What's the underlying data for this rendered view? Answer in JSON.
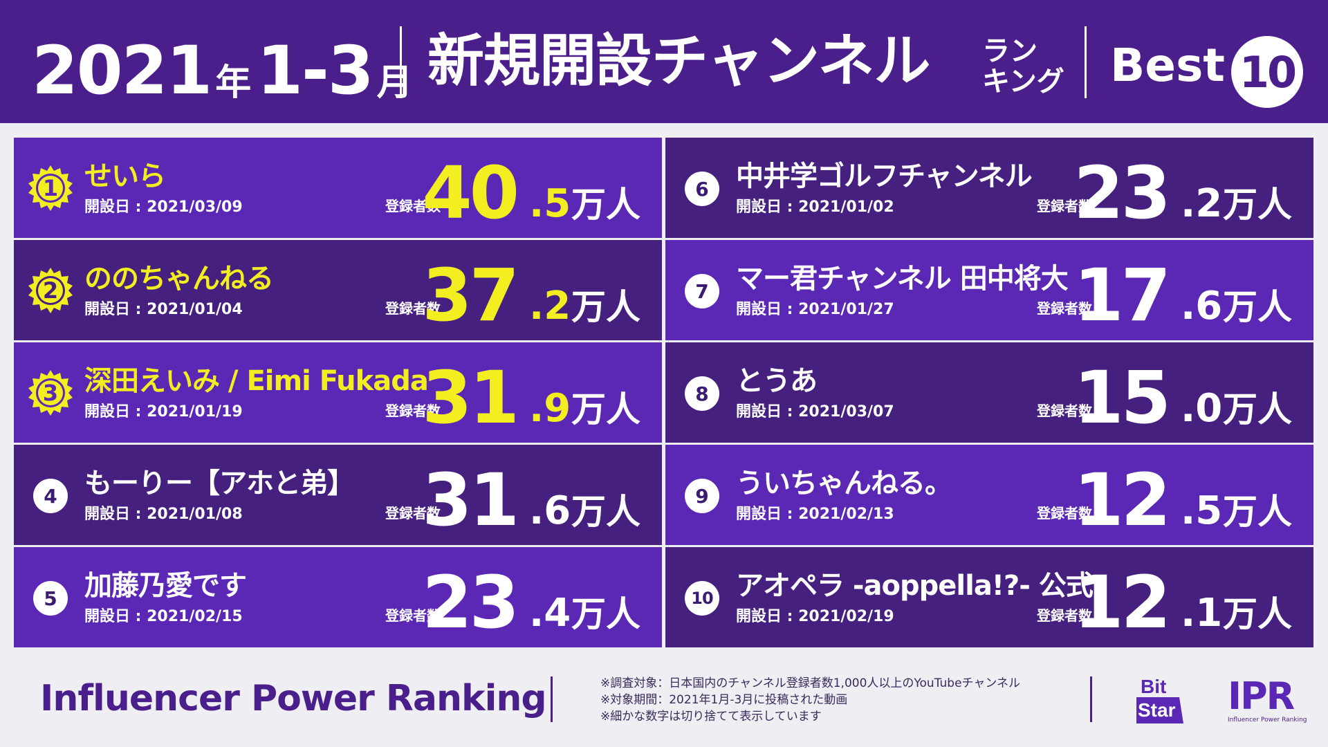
{
  "header": {
    "year": "2021",
    "year_unit": "年",
    "months": "1-3",
    "month_unit": "月",
    "title": "新規開設チャンネル",
    "subtitle_line1": "ラン",
    "subtitle_line2": "キング",
    "best_label": "Best",
    "best_count": "10"
  },
  "rankings": [
    {
      "rank": "1",
      "name": "せいら",
      "date": "開設日 : 2021/03/09",
      "subs_label": "登録者数",
      "subs_int": "40",
      "subs_dec": ".5",
      "unit": "万人"
    },
    {
      "rank": "2",
      "name": "ののちゃんねる",
      "date": "開設日 : 2021/01/04",
      "subs_label": "登録者数",
      "subs_int": "37",
      "subs_dec": ".2",
      "unit": "万人"
    },
    {
      "rank": "3",
      "name": "深田えいみ / Eimi Fukada",
      "date": "開設日 : 2021/01/19",
      "subs_label": "登録者数",
      "subs_int": "31",
      "subs_dec": ".9",
      "unit": "万人"
    },
    {
      "rank": "4",
      "name": "もーりー【アホと弟】",
      "date": "開設日 : 2021/01/08",
      "subs_label": "登録者数",
      "subs_int": "31",
      "subs_dec": ".6",
      "unit": "万人"
    },
    {
      "rank": "5",
      "name": "加藤乃愛です",
      "date": "開設日 : 2021/02/15",
      "subs_label": "登録者数",
      "subs_int": "23",
      "subs_dec": ".4",
      "unit": "万人"
    },
    {
      "rank": "6",
      "name": "中井学ゴルフチャンネル",
      "date": "開設日 : 2021/01/02",
      "subs_label": "登録者数",
      "subs_int": "23",
      "subs_dec": ".2",
      "unit": "万人"
    },
    {
      "rank": "7",
      "name": "マー君チャンネル 田中将大",
      "date": "開設日 : 2021/01/27",
      "subs_label": "登録者数",
      "subs_int": "17",
      "subs_dec": ".6",
      "unit": "万人"
    },
    {
      "rank": "8",
      "name": "とうあ",
      "date": "開設日 : 2021/03/07",
      "subs_label": "登録者数",
      "subs_int": "15",
      "subs_dec": ".0",
      "unit": "万人"
    },
    {
      "rank": "9",
      "name": "ういちゃんねる。",
      "date": "開設日 : 2021/02/13",
      "subs_label": "登録者数",
      "subs_int": "12",
      "subs_dec": ".5",
      "unit": "万人"
    },
    {
      "rank": "10",
      "name": "アオペラ -aoppella!?- 公式",
      "date": "開設日 : 2021/02/19",
      "subs_label": "登録者数",
      "subs_int": "12",
      "subs_dec": ".1",
      "unit": "万人"
    }
  ],
  "footer": {
    "brand": "Influencer Power Ranking",
    "note1": "※調査対象：日本国内のチャンネル登録者数1,000人以上のYouTubeチャンネル",
    "note2": "※対象期間：2021年1月-3月に投稿された動画",
    "note3": "※細かな数字は切り捨てて表示しています",
    "logo_bitstar_1": "Bit",
    "logo_bitstar_2": "Star",
    "logo_ipr": "IPR",
    "logo_ipr_sub": "Influencer Power Ranking"
  },
  "colors": {
    "header_bg": "#4a1f8c",
    "row_light": "#5a28b4",
    "row_dark": "#45207f",
    "gold": "#f3ee1f",
    "background": "#eeeef3"
  }
}
